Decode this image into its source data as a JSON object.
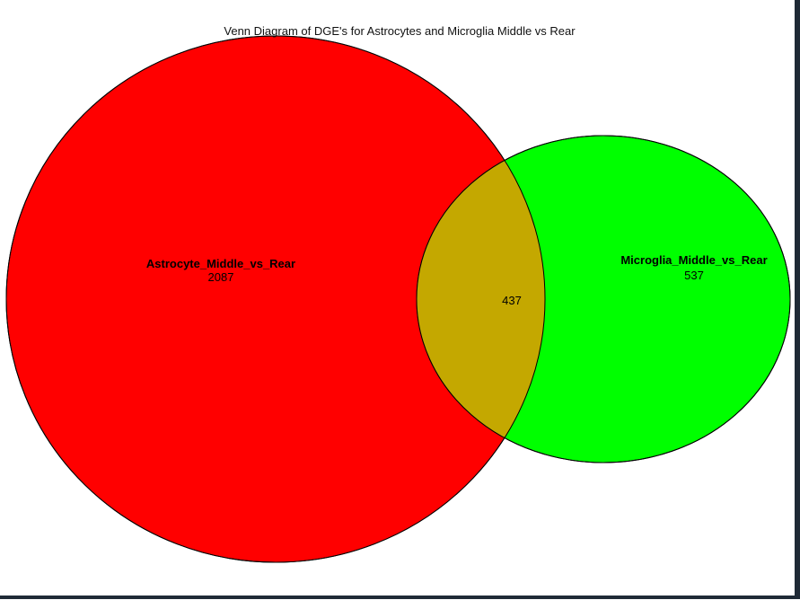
{
  "title": "Venn Diagram of DGE's for Astrocytes and Microglia Middle vs Rear",
  "sets": [
    {
      "name": "Astrocyte_Middle_vs_Rear",
      "unique_count": "2087",
      "color": "#ff0000"
    },
    {
      "name": "Microglia_Middle_vs_Rear",
      "unique_count": "537",
      "color": "#00ff00"
    }
  ],
  "intersection": {
    "count": "437",
    "color": "#c4a800"
  }
}
